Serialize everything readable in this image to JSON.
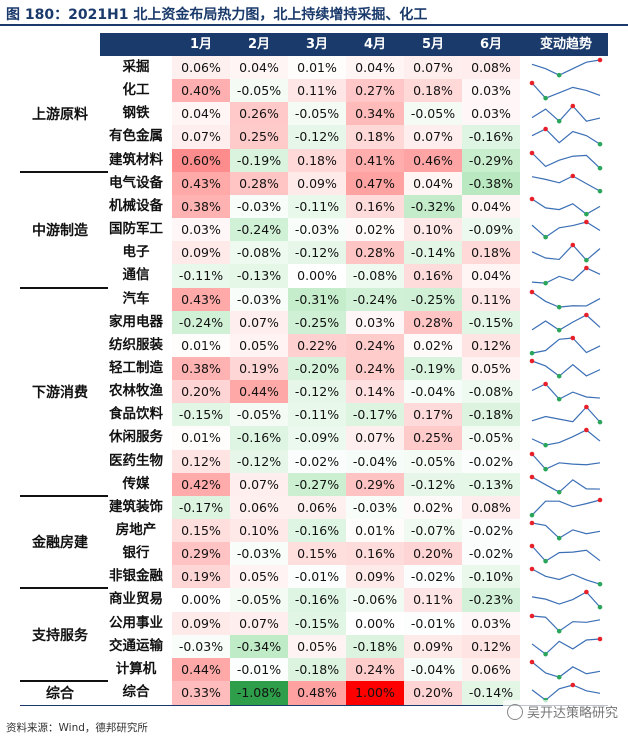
{
  "title": "图 180：2021H1 北上资金布局热力图，北上持续增持采掘、化工",
  "source": "资料来源：Wind，德邦研究所",
  "watermark": "吴开达策略研究",
  "colors": {
    "header_bg": "#1a3a6b",
    "positive_max": "#ff0000",
    "negative_max": "#2e9e4a",
    "neutral": "#ffffff",
    "spark_line": "#3b6fb5",
    "spark_max": "#e8202a",
    "spark_min": "#2aa55a"
  },
  "chart_data": {
    "type": "heatmap",
    "title": "图 180：2021H1 北上资金布局热力图，北上持续增持采掘、化工",
    "columns": [
      "1月",
      "2月",
      "3月",
      "4月",
      "5月",
      "6月"
    ],
    "trend_header": "变动趋势",
    "groups": [
      {
        "name": "上游原料",
        "rows": [
          {
            "sector": "采掘",
            "values": [
              0.06,
              0.04,
              0.01,
              0.04,
              0.07,
              0.08
            ]
          },
          {
            "sector": "化工",
            "values": [
              0.4,
              -0.05,
              0.11,
              0.27,
              0.18,
              0.03
            ]
          },
          {
            "sector": "钢铁",
            "values": [
              0.04,
              0.26,
              -0.05,
              0.34,
              -0.05,
              0.03
            ]
          },
          {
            "sector": "有色金属",
            "values": [
              0.07,
              0.25,
              -0.12,
              0.18,
              0.07,
              -0.16
            ]
          },
          {
            "sector": "建筑材料",
            "values": [
              0.6,
              -0.19,
              0.18,
              0.41,
              0.46,
              -0.29
            ]
          }
        ]
      },
      {
        "name": "中游制造",
        "rows": [
          {
            "sector": "电气设备",
            "values": [
              0.43,
              0.28,
              0.09,
              0.47,
              0.04,
              -0.38
            ]
          },
          {
            "sector": "机械设备",
            "values": [
              0.38,
              -0.03,
              -0.11,
              0.16,
              -0.32,
              0.04
            ]
          },
          {
            "sector": "国防军工",
            "values": [
              0.03,
              -0.24,
              -0.03,
              0.02,
              0.1,
              -0.09
            ]
          },
          {
            "sector": "电子",
            "values": [
              0.09,
              -0.08,
              -0.12,
              0.28,
              -0.14,
              0.18
            ]
          },
          {
            "sector": "通信",
            "values": [
              -0.11,
              -0.13,
              0.0,
              -0.08,
              0.16,
              0.04
            ]
          }
        ]
      },
      {
        "name": "下游消费",
        "rows": [
          {
            "sector": "汽车",
            "values": [
              0.43,
              -0.03,
              -0.31,
              -0.24,
              -0.25,
              0.11
            ]
          },
          {
            "sector": "家用电器",
            "values": [
              -0.24,
              0.07,
              -0.25,
              0.03,
              0.28,
              -0.15
            ]
          },
          {
            "sector": "纺织服装",
            "values": [
              0.01,
              0.05,
              0.22,
              0.24,
              0.02,
              0.12
            ]
          },
          {
            "sector": "轻工制造",
            "values": [
              0.38,
              0.19,
              -0.2,
              0.24,
              -0.19,
              0.05
            ]
          },
          {
            "sector": "农林牧渔",
            "values": [
              0.2,
              0.44,
              -0.12,
              0.14,
              -0.04,
              -0.08
            ]
          },
          {
            "sector": "食品饮料",
            "values": [
              -0.15,
              -0.05,
              -0.11,
              -0.17,
              0.17,
              -0.18
            ]
          },
          {
            "sector": "休闲服务",
            "values": [
              0.01,
              -0.16,
              -0.09,
              0.07,
              0.25,
              -0.05
            ]
          },
          {
            "sector": "医药生物",
            "values": [
              0.12,
              -0.12,
              -0.02,
              -0.04,
              -0.05,
              -0.02
            ]
          },
          {
            "sector": "传媒",
            "values": [
              0.42,
              0.07,
              -0.27,
              0.29,
              -0.12,
              -0.13
            ]
          }
        ]
      },
      {
        "name": "金融房建",
        "rows": [
          {
            "sector": "建筑装饰",
            "values": [
              -0.17,
              0.06,
              0.06,
              -0.03,
              0.02,
              0.08
            ]
          },
          {
            "sector": "房地产",
            "values": [
              0.15,
              0.1,
              -0.16,
              0.01,
              -0.07,
              -0.02
            ]
          },
          {
            "sector": "银行",
            "values": [
              0.29,
              -0.03,
              0.15,
              0.16,
              0.2,
              -0.02
            ]
          },
          {
            "sector": "非银金融",
            "values": [
              0.19,
              0.05,
              -0.01,
              0.09,
              -0.02,
              -0.1
            ]
          }
        ]
      },
      {
        "name": "支持服务",
        "rows": [
          {
            "sector": "商业贸易",
            "values": [
              0.0,
              -0.05,
              -0.16,
              -0.06,
              0.11,
              -0.23
            ]
          },
          {
            "sector": "公用事业",
            "values": [
              0.09,
              0.07,
              -0.15,
              0.0,
              -0.01,
              0.03
            ]
          },
          {
            "sector": "交通运输",
            "values": [
              -0.03,
              -0.34,
              0.05,
              -0.18,
              0.09,
              0.12
            ]
          },
          {
            "sector": "计算机",
            "values": [
              0.44,
              -0.01,
              -0.18,
              0.24,
              -0.04,
              0.06
            ]
          }
        ]
      },
      {
        "name": "综合",
        "rows": [
          {
            "sector": "综合",
            "values": [
              0.33,
              -1.08,
              0.48,
              1.0,
              0.2,
              -0.14
            ]
          }
        ]
      }
    ],
    "unit": "%"
  }
}
